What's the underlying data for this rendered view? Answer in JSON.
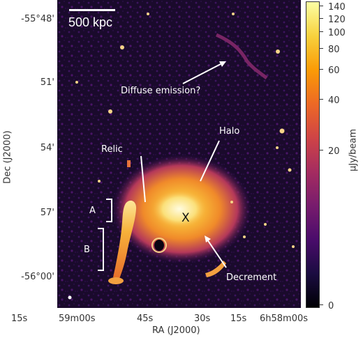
{
  "image": {
    "scalebar_label": "500 kpc",
    "annotations": {
      "diffuse": "Diffuse emission?",
      "halo": "Halo",
      "relic": "Relic",
      "a": "A",
      "b": "B",
      "x": "X",
      "decrement": "Decrement"
    }
  },
  "axes": {
    "ylabel": "Dec (J2000)",
    "xlabel": "RA (J2000)",
    "yticks": [
      "-55°48'",
      "51'",
      "54'",
      "57'",
      "-56°00'"
    ],
    "xticks": [
      "15s",
      "59m00s",
      "45s",
      "30s",
      "15s",
      "6h58m00s"
    ]
  },
  "colorbar": {
    "label": "μJy/beam",
    "ticks": [
      "140",
      "120",
      "100",
      "80",
      "60",
      "40",
      "20",
      "0"
    ],
    "colors": [
      "#000004",
      "#1b0c41",
      "#4a0c6b",
      "#781c6d",
      "#a52c60",
      "#cf4446",
      "#ed6925",
      "#fb9b06",
      "#f7d13d",
      "#fcffa4"
    ]
  }
}
